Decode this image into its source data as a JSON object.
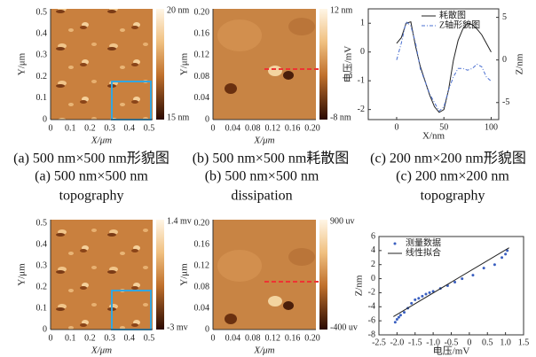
{
  "images": [
    {
      "yticks": [
        "0",
        "0.1",
        "0.2",
        "0.3",
        "0.4",
        "0.5"
      ],
      "xticks": [
        "0",
        "0.1",
        "0.2",
        "0.3",
        "0.4",
        "0.5"
      ],
      "ylabel": "Y/μm",
      "xlabel": "X/μm",
      "colorbar": {
        "max": "20 nm",
        "min": "15 nm"
      }
    },
    {
      "yticks": [
        "0",
        "0.04",
        "0.08",
        "0.12",
        "0.16",
        "0.20"
      ],
      "xticks": [
        "0",
        "0.04",
        "0.08",
        "0.12",
        "0.16",
        "0.20"
      ],
      "ylabel": "Y/μm",
      "xlabel": "X/μm",
      "colorbar": {
        "max": "12 nm",
        "min": "-8 nm"
      }
    },
    {
      "yticks": [
        "0",
        "0.1",
        "0.2",
        "0.3",
        "0.4",
        "0.5"
      ],
      "xticks": [
        "0",
        "0.1",
        "0.2",
        "0.3",
        "0.4",
        "0.5"
      ],
      "ylabel": "Y/μm",
      "xlabel": "X/μm",
      "colorbar": {
        "max": "1.4 mv",
        "min": "-3 mv"
      }
    },
    {
      "yticks": [
        "0",
        "0.04",
        "0.08",
        "0.12",
        "0.16",
        "0.20"
      ],
      "xticks": [
        "0",
        "0.04",
        "0.08",
        "0.12",
        "0.16",
        "0.20"
      ],
      "ylabel": "Y/μm",
      "xlabel": "X/μm",
      "colorbar": {
        "max": "900 uv",
        "min": "-400 uv"
      }
    }
  ],
  "captions": [
    {
      "zh": "(a) 500 nm×500 nm形貌图",
      "en1": "(a) 500 nm×500 nm",
      "en2": "topography"
    },
    {
      "zh": "(b) 500 nm×500 nm耗散图",
      "en1": "(b) 500 nm×500 nm",
      "en2": "dissipation"
    },
    {
      "zh": "(c) 200 nm×200 nm形貌图",
      "en1": "(c) 200 nm×200 nm",
      "en2": "topography"
    }
  ],
  "chart_data": [
    {
      "type": "line",
      "xlabel": "X/nm",
      "ylabel": "电压/mV",
      "y2label": "Z/nm",
      "x": [
        0,
        5,
        10,
        15,
        20,
        25,
        30,
        35,
        40,
        45,
        50,
        55,
        60,
        65,
        70,
        75,
        80,
        85,
        90,
        95,
        100
      ],
      "xlim": [
        -30,
        108
      ],
      "xticks": [
        0,
        50,
        100
      ],
      "ylim": [
        -2.35,
        1.5
      ],
      "yticks": [
        -2,
        -1,
        0,
        1
      ],
      "y2lim": [
        -7,
        6
      ],
      "y2ticks": [
        -5,
        0,
        5
      ],
      "series": [
        {
          "name": "耗散图",
          "color": "#222222",
          "values": [
            0.3,
            0.5,
            1.0,
            1.05,
            0.2,
            -0.5,
            -1.0,
            -1.5,
            -1.9,
            -2.1,
            -2.0,
            -1.3,
            -0.3,
            0.4,
            0.8,
            1.0,
            0.95,
            0.8,
            0.6,
            0.3,
            0.0
          ]
        },
        {
          "name": "Z轴形貌图",
          "color": "#4a6fd0",
          "axis": "y2",
          "values": [
            0,
            2,
            4.5,
            4.0,
            2.0,
            -1.0,
            -2.5,
            -4.0,
            -5.0,
            -6.0,
            -5.5,
            -3.5,
            -2.0,
            -1.0,
            -1.0,
            -1.2,
            -1.0,
            -0.5,
            -0.8,
            -2.0,
            -2.5
          ]
        }
      ]
    },
    {
      "type": "scatter",
      "xlabel": "电压/mV",
      "ylabel": "Z/nm",
      "xlim": [
        -2.5,
        1.5
      ],
      "xticks": [
        -2.5,
        {
          "value": -2,
          "label": "-2.0"
        },
        -1.5,
        {
          "value": -1,
          "label": "-1.0"
        },
        -0.5,
        0,
        0.5,
        {
          "value": 1,
          "label": "1.0"
        },
        1.5
      ],
      "ylim": [
        -8,
        6
      ],
      "yticks": [
        -8,
        -6,
        -4,
        -2,
        0,
        2,
        4,
        6
      ],
      "series": [
        {
          "name": "测量数据",
          "color": "#3a5fc0",
          "x": [
            -2.05,
            -2.0,
            -1.95,
            -1.9,
            -1.8,
            -1.7,
            -1.6,
            -1.5,
            -1.4,
            -1.3,
            -1.2,
            -1.1,
            -1.0,
            -0.8,
            -0.6,
            -0.4,
            -0.2,
            0.1,
            0.4,
            0.7,
            0.9,
            1.0,
            1.05
          ],
          "values": [
            -6.2,
            -5.8,
            -5.5,
            -5.2,
            -4.8,
            -4.2,
            -3.5,
            -3.0,
            -2.8,
            -2.5,
            -2.2,
            -2.0,
            -1.8,
            -1.4,
            -1.0,
            -0.5,
            0,
            0.5,
            1.5,
            2.0,
            3.0,
            3.5,
            4.0
          ]
        },
        {
          "name": "线性拟合",
          "color": "#222222",
          "x": [
            -2.1,
            1.1
          ],
          "values": [
            -5.4,
            4.4
          ]
        }
      ]
    }
  ]
}
